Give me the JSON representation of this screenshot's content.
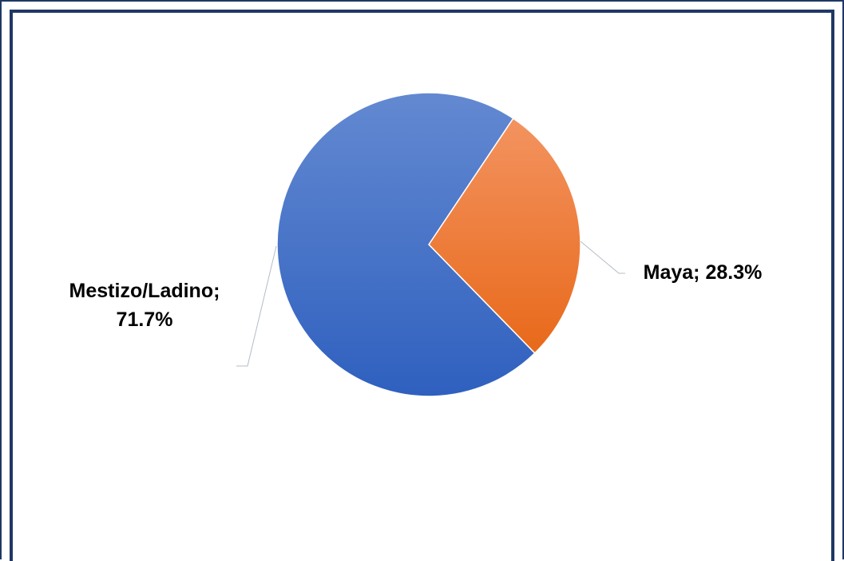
{
  "chart_data": {
    "type": "pie",
    "categories": [
      "Maya",
      "Mestizo/Ladino"
    ],
    "values": [
      28.3,
      71.7
    ],
    "value_suffix": "%",
    "label_lines": [
      [
        "Maya; 28.3%"
      ],
      [
        "Mestizo/Ladino;",
        "71.7%"
      ]
    ],
    "colors": [
      "#ed7d31",
      "#4472c4"
    ],
    "legend": "none"
  }
}
